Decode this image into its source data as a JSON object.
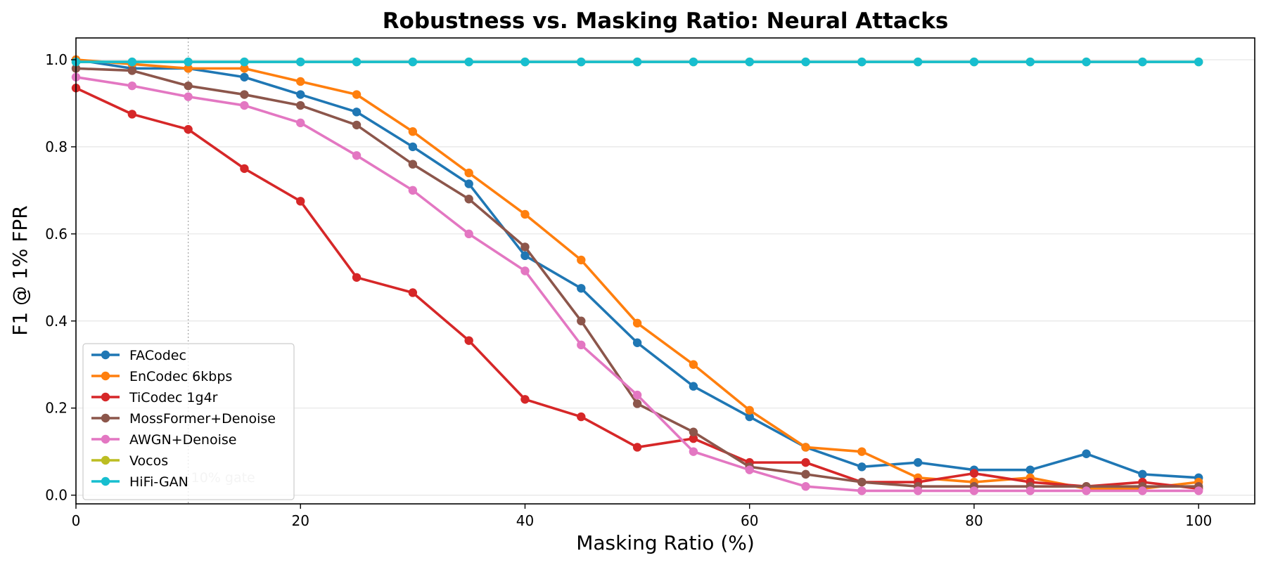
{
  "chart_data": {
    "type": "line",
    "title": "Robustness vs. Masking Ratio: Neural Attacks",
    "xlabel": "Masking Ratio (%)",
    "ylabel": "F1 @ 1% FPR",
    "xlim": [
      0,
      105
    ],
    "ylim": [
      -0.02,
      1.05
    ],
    "xticks": [
      0,
      20,
      40,
      60,
      80,
      100
    ],
    "yticks": [
      0.0,
      0.2,
      0.4,
      0.6,
      0.8,
      1.0
    ],
    "grid": "horizontal",
    "legend_position": "lower-left",
    "x": [
      0,
      5,
      10,
      15,
      20,
      25,
      30,
      35,
      40,
      45,
      50,
      55,
      60,
      65,
      70,
      75,
      80,
      85,
      90,
      95,
      100
    ],
    "series": [
      {
        "name": "FACodec",
        "color": "#1f77b4",
        "values": [
          1.0,
          0.98,
          0.98,
          0.96,
          0.92,
          0.88,
          0.8,
          0.715,
          0.55,
          0.475,
          0.35,
          0.25,
          0.18,
          0.11,
          0.065,
          0.075,
          0.058,
          0.058,
          0.095,
          0.048,
          0.04
        ]
      },
      {
        "name": "EnCodec 6kbps",
        "color": "#ff7f0e",
        "values": [
          1.0,
          0.99,
          0.98,
          0.98,
          0.95,
          0.92,
          0.835,
          0.74,
          0.645,
          0.54,
          0.395,
          0.3,
          0.195,
          0.11,
          0.1,
          0.04,
          0.03,
          0.04,
          0.015,
          0.015,
          0.03
        ]
      },
      {
        "name": "TiCodec 1g4r",
        "color": "#d62728",
        "values": [
          0.935,
          0.875,
          0.84,
          0.75,
          0.675,
          0.5,
          0.465,
          0.355,
          0.22,
          0.18,
          0.11,
          0.13,
          0.075,
          0.075,
          0.03,
          0.03,
          0.05,
          0.03,
          0.02,
          0.03,
          0.015
        ]
      },
      {
        "name": "MossFormer+Denoise",
        "color": "#8c564b",
        "values": [
          0.98,
          0.975,
          0.94,
          0.92,
          0.895,
          0.85,
          0.76,
          0.68,
          0.57,
          0.4,
          0.21,
          0.145,
          0.065,
          0.048,
          0.03,
          0.02,
          0.02,
          0.02,
          0.02,
          0.02,
          0.02
        ]
      },
      {
        "name": "AWGN+Denoise",
        "color": "#e377c2",
        "values": [
          0.96,
          0.94,
          0.915,
          0.895,
          0.855,
          0.78,
          0.7,
          0.6,
          0.515,
          0.345,
          0.23,
          0.1,
          0.058,
          0.02,
          0.01,
          0.01,
          0.01,
          0.01,
          0.01,
          0.01,
          0.01
        ]
      },
      {
        "name": "Vocos",
        "color": "#bcbd22",
        "values": [
          0.995,
          0.995,
          0.995,
          0.995,
          0.995,
          0.995,
          0.995,
          0.995,
          0.995,
          0.995,
          0.995,
          0.995,
          0.995,
          0.995,
          0.995,
          0.995,
          0.995,
          0.995,
          0.995,
          0.995,
          0.995
        ]
      },
      {
        "name": "HiFi-GAN",
        "color": "#17becf",
        "values": [
          0.995,
          0.995,
          0.995,
          0.995,
          0.995,
          0.995,
          0.995,
          0.995,
          0.995,
          0.995,
          0.995,
          0.995,
          0.995,
          0.995,
          0.995,
          0.995,
          0.995,
          0.995,
          0.995,
          0.995,
          0.995
        ]
      }
    ],
    "annotations": [
      {
        "text": "10% gate",
        "x": 10,
        "style": "vertical dotted line"
      }
    ]
  }
}
